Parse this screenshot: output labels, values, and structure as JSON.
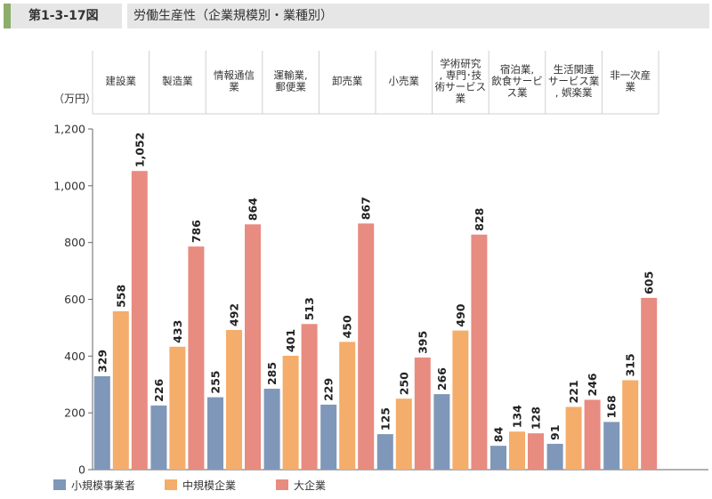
{
  "header": {
    "figure_number": "第1-3-17図",
    "title": "労働生産性（企業規模別・業種別）"
  },
  "colors": {
    "small": "#7f97b9",
    "medium": "#f4ad6a",
    "large": "#e88b80",
    "header_accent": "#8cae6a"
  },
  "chart_data": {
    "type": "bar",
    "ylabel": "（万円）",
    "ylim": [
      0,
      1200
    ],
    "yticks": [
      0,
      200,
      400,
      600,
      800,
      1000,
      1200
    ],
    "ytick_labels": [
      "0",
      "200",
      "400",
      "600",
      "800",
      "1,000",
      "1,200"
    ],
    "categories": [
      [
        "建設業"
      ],
      [
        "製造業"
      ],
      [
        "情報通信",
        "業"
      ],
      [
        "運輸業,",
        "郵便業"
      ],
      [
        "卸売業"
      ],
      [
        "小売業"
      ],
      [
        "学術研究",
        ", 専門･技",
        "術サービス",
        "業"
      ],
      [
        "宿泊業,",
        "飲食サービ",
        "ス業"
      ],
      [
        "生活関連",
        "サービス業",
        ", 娯楽業"
      ],
      [
        "非一次産",
        "業"
      ]
    ],
    "series": [
      {
        "name": "小規模事業者",
        "values": [
          329,
          226,
          255,
          285,
          229,
          125,
          266,
          84,
          91,
          168
        ],
        "labels": [
          "329",
          "226",
          "255",
          "285",
          "229",
          "125",
          "266",
          "84",
          "91",
          "168"
        ]
      },
      {
        "name": "中規模企業",
        "values": [
          558,
          433,
          492,
          401,
          450,
          250,
          490,
          134,
          221,
          315
        ],
        "labels": [
          "558",
          "433",
          "492",
          "401",
          "450",
          "250",
          "490",
          "134",
          "221",
          "315"
        ]
      },
      {
        "name": "大企業",
        "values": [
          1052,
          786,
          864,
          513,
          867,
          395,
          828,
          128,
          246,
          605
        ],
        "labels": [
          "1,052",
          "786",
          "864",
          "513",
          "867",
          "395",
          "828",
          "128",
          "246",
          "605"
        ]
      }
    ],
    "legend_position": "bottom-left",
    "grid": false
  }
}
